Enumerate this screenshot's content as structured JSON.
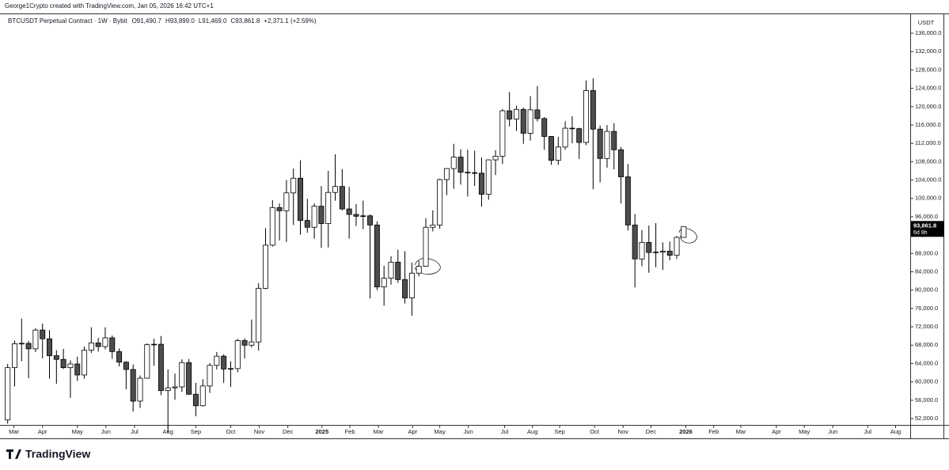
{
  "header": {
    "credit": "George1Crypto created with TradingView.com, Jan 05, 2026 16:42 UTC+1",
    "symbol": "BTCUSDT Perpetual Contract · 1W · Bybit",
    "ohlc_text": [
      "O91,490.7",
      "H93,899.0",
      "L91,469.0",
      "C93,861.8",
      "+2,371.1 (+2.59%)"
    ]
  },
  "footer": {
    "logo": "TradingView"
  },
  "chart_data": {
    "type": "candlestick",
    "y_axis_label": "USDT",
    "last_price_label": "93,861.8",
    "countdown": "6d 9h",
    "up_color": "#ffffff",
    "down_color": "#4d4d4d",
    "border_color": "#000000",
    "categories": [
      null,
      null,
      null,
      null,
      null,
      null,
      null,
      null,
      null,
      null,
      null,
      null,
      null,
      null,
      null,
      null,
      null,
      null,
      null,
      null,
      null,
      null,
      null,
      null,
      null,
      null,
      null,
      null,
      null,
      null,
      null,
      null,
      null,
      null,
      null,
      null,
      null,
      null,
      null,
      null,
      null,
      null,
      null,
      null,
      null,
      null,
      null,
      null,
      null,
      null,
      null,
      null,
      null,
      null,
      null,
      null,
      null,
      null,
      null,
      null,
      null,
      null,
      null,
      null,
      null,
      null,
      null,
      null,
      null,
      null,
      null,
      null,
      null,
      null,
      null,
      null,
      null,
      null,
      null,
      null,
      null,
      null,
      null,
      null,
      null,
      null,
      null,
      null,
      null,
      null,
      null,
      null,
      null,
      null,
      null,
      null,
      null,
      null
    ],
    "open": [
      51700,
      63100,
      68300,
      68400,
      67200,
      71300,
      69400,
      65700,
      64900,
      63100,
      63900,
      61500,
      66900,
      68500,
      67700,
      69600,
      66600,
      64300,
      62700,
      55800,
      60800,
      68100,
      68200,
      58100,
      58700,
      58900,
      64200,
      57300,
      54800,
      59100,
      63600,
      65600,
      62800,
      62900,
      69000,
      68000,
      68700,
      80400,
      89800,
      98000,
      97300,
      101200,
      104400,
      95200,
      93700,
      98300,
      94500,
      101300,
      102600,
      97700,
      96500,
      96100,
      96200,
      94200,
      80700,
      82600,
      86100,
      82300,
      78300,
      83700,
      85200,
      93700,
      94200,
      104100,
      106500,
      109000,
      105700,
      105600,
      105500,
      100900,
      108400,
      109200,
      119100,
      117300,
      119400,
      114200,
      119300,
      117400,
      113500,
      108300,
      111200,
      115300,
      115200,
      112200,
      123500,
      115100,
      108700,
      114600,
      110600,
      104700,
      94200,
      86800,
      90400,
      88200,
      88300,
      88500,
      87600,
      91490.7
    ],
    "high": [
      63900,
      69000,
      73800,
      68900,
      71700,
      72700,
      71300,
      66900,
      67200,
      64700,
      65500,
      67700,
      71900,
      69600,
      71900,
      70100,
      67300,
      64500,
      63800,
      61400,
      68400,
      69400,
      70000,
      62700,
      61800,
      64900,
      65000,
      59800,
      60600,
      64100,
      66500,
      66000,
      64500,
      69400,
      69500,
      73600,
      81500,
      93500,
      99600,
      98900,
      104000,
      106500,
      108300,
      99900,
      98900,
      102700,
      106000,
      109600,
      106400,
      102500,
      98800,
      99500,
      96500,
      95000,
      85300,
      87400,
      88800,
      88500,
      86000,
      86400,
      95700,
      97400,
      104300,
      106600,
      111900,
      110700,
      110600,
      110400,
      108900,
      108500,
      110500,
      119500,
      123200,
      120200,
      119800,
      122300,
      124500,
      117700,
      113600,
      113400,
      116800,
      117900,
      115400,
      125700,
      126200,
      115900,
      116000,
      116400,
      111200,
      107500,
      96600,
      93100,
      94100,
      94600,
      90400,
      90600,
      91800,
      93899.0
    ],
    "low": [
      50900,
      59000,
      64500,
      60800,
      66500,
      65100,
      60700,
      59600,
      62800,
      56500,
      60200,
      60700,
      66300,
      66600,
      67100,
      65000,
      63400,
      58400,
      53500,
      54300,
      60700,
      63500,
      57100,
      49000,
      56100,
      57800,
      57200,
      52500,
      54600,
      57600,
      62700,
      59800,
      58900,
      62100,
      65100,
      67500,
      66800,
      80200,
      89500,
      90800,
      90500,
      94200,
      92100,
      92500,
      91200,
      89200,
      89300,
      99500,
      97400,
      91200,
      94000,
      93300,
      78200,
      80000,
      76600,
      81200,
      81600,
      77100,
      74400,
      83000,
      85100,
      92800,
      93400,
      100700,
      102100,
      103000,
      100400,
      102700,
      98200,
      99700,
      105100,
      107500,
      115700,
      114700,
      111900,
      112600,
      116800,
      110600,
      107300,
      107300,
      110600,
      112000,
      108600,
      111600,
      102000,
      103500,
      106700,
      106300,
      98900,
      93000,
      80600,
      85200,
      83800,
      85000,
      84400,
      86500,
      86800,
      91469.0
    ],
    "close": [
      63100,
      68300,
      68400,
      67200,
      71300,
      69400,
      65700,
      64900,
      63100,
      63900,
      61500,
      66900,
      68500,
      67700,
      69600,
      66600,
      64300,
      62700,
      55800,
      60800,
      68100,
      68200,
      58100,
      58700,
      58900,
      64200,
      57300,
      54800,
      59100,
      63600,
      65600,
      62800,
      62900,
      69000,
      68000,
      68700,
      80400,
      89800,
      98000,
      97300,
      101200,
      104400,
      95200,
      93700,
      98300,
      94500,
      101300,
      102600,
      97700,
      96500,
      96100,
      96200,
      94200,
      80700,
      82600,
      86100,
      82300,
      78300,
      83700,
      85200,
      93700,
      94200,
      104100,
      106500,
      109000,
      105700,
      105600,
      105500,
      100900,
      108400,
      109200,
      119100,
      117300,
      119400,
      114200,
      119300,
      117400,
      113500,
      108300,
      111200,
      115300,
      115200,
      112200,
      123500,
      115100,
      108700,
      114600,
      110600,
      104700,
      94200,
      86800,
      90400,
      88200,
      88300,
      88500,
      87600,
      91500,
      93861.8
    ],
    "ylim": [
      50620,
      139800
    ],
    "yticks": [
      {
        "value": 52000,
        "label": "52,000.0"
      },
      {
        "value": 56000,
        "label": "56,000.0"
      },
      {
        "value": 60000,
        "label": "60,000.0"
      },
      {
        "value": 64000,
        "label": "64,000.0"
      },
      {
        "value": 68000,
        "label": "68,000.0"
      },
      {
        "value": 72000,
        "label": "72,000.0"
      },
      {
        "value": 76000,
        "label": "76,000.0"
      },
      {
        "value": 80000,
        "label": "80,000.0"
      },
      {
        "value": 84000,
        "label": "84,000.0"
      },
      {
        "value": 88000,
        "label": "88,000.0"
      },
      {
        "value": 92000,
        "label": "92,000.0"
      },
      {
        "value": 96000,
        "label": "96,000.0"
      },
      {
        "value": 100000,
        "label": "100,000.0"
      },
      {
        "value": 104000,
        "label": "104,000.0"
      },
      {
        "value": 108000,
        "label": "108,000.0"
      },
      {
        "value": 112000,
        "label": "112,000.0"
      },
      {
        "value": 116000,
        "label": "116,000.0"
      },
      {
        "value": 120000,
        "label": "120,000.0"
      },
      {
        "value": 124000,
        "label": "124,000.0"
      },
      {
        "value": 128000,
        "label": "128,000.0"
      },
      {
        "value": 132000,
        "label": "132,000.0"
      },
      {
        "value": 136000,
        "label": "136,000.0"
      }
    ],
    "xlim": [
      -1.1,
      129.5
    ],
    "xticks": [
      {
        "value": 0.9,
        "label": "Mar"
      },
      {
        "value": 5,
        "label": "Apr"
      },
      {
        "value": 10,
        "label": "May"
      },
      {
        "value": 14.1,
        "label": "Jun"
      },
      {
        "value": 18.2,
        "label": "Jul"
      },
      {
        "value": 23,
        "label": "Aug"
      },
      {
        "value": 27,
        "label": "Sep"
      },
      {
        "value": 32,
        "label": "Oct"
      },
      {
        "value": 36.1,
        "label": "Nov"
      },
      {
        "value": 40.2,
        "label": "Dec"
      },
      {
        "value": 45.1,
        "label": "2025"
      },
      {
        "value": 49.1,
        "label": "Feb"
      },
      {
        "value": 53.2,
        "label": "Mar"
      },
      {
        "value": 58.1,
        "label": "Apr"
      },
      {
        "value": 62,
        "label": "May"
      },
      {
        "value": 66.1,
        "label": "Jun"
      },
      {
        "value": 71.3,
        "label": "Jul"
      },
      {
        "value": 75.3,
        "label": "Aug"
      },
      {
        "value": 79.2,
        "label": "Sep"
      },
      {
        "value": 84.2,
        "label": "Oct"
      },
      {
        "value": 88.3,
        "label": "Nov"
      },
      {
        "value": 92.3,
        "label": "Dec"
      },
      {
        "value": 97.3,
        "label": "2026"
      },
      {
        "value": 101.3,
        "label": "Feb"
      },
      {
        "value": 105.2,
        "label": "Mar"
      },
      {
        "value": 110.3,
        "label": "Apr"
      },
      {
        "value": 114.3,
        "label": "May"
      },
      {
        "value": 118.4,
        "label": "Jun"
      },
      {
        "value": 123.4,
        "label": "Jul"
      },
      {
        "value": 127.4,
        "label": "Aug"
      }
    ]
  }
}
